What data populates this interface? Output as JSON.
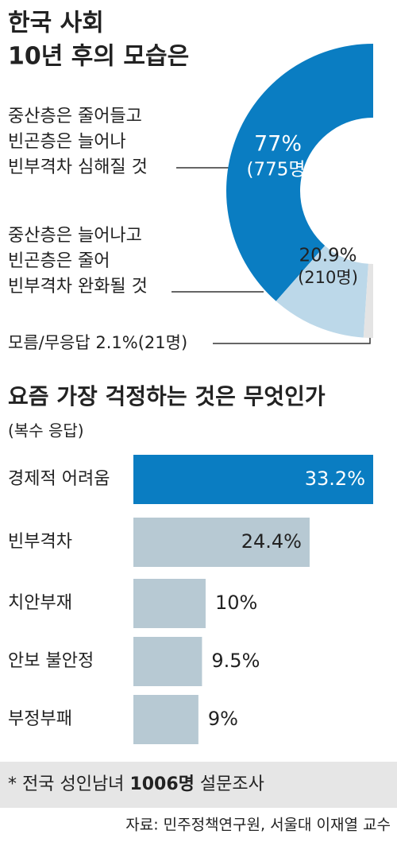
{
  "chart_data": [
    {
      "type": "pie",
      "title": [
        "한국 사회",
        "10년 후의 모습은"
      ],
      "categories": [
        [
          "중산층은 줄어들고",
          "빈곤층은 늘어나",
          "빈부격차 심해질 것"
        ],
        [
          "중산층은 늘어나고",
          "빈곤층은 줄어",
          "빈부격차 완화될 것"
        ],
        [
          "모름/무응답"
        ]
      ],
      "values": [
        77,
        20.9,
        2.1
      ],
      "value_labels": [
        "77%",
        "20.9%",
        "2.1%"
      ],
      "counts": [
        775,
        210,
        21
      ],
      "count_labels": [
        "(775명)",
        "(210명)",
        "(21명)"
      ],
      "colors": [
        "#0a7dc2",
        "#bcd8e9",
        "#e4e4e4"
      ]
    },
    {
      "type": "hbar",
      "title": "요즘 가장 걱정하는 것은 무엇인가",
      "subtitle": "(복수 응답)",
      "categories": [
        "경제적 어려움",
        "빈부격차",
        "치안부재",
        "안보 불안정",
        "부정부패"
      ],
      "values": [
        33.2,
        24.4,
        10,
        9.5,
        9
      ],
      "value_labels": [
        "33.2%",
        "24.4%",
        "10%",
        "9.5%",
        "9%"
      ],
      "colors": [
        "#0a7dc2",
        "#b7c9d3",
        "#b7c9d3",
        "#b7c9d3",
        "#b7c9d3"
      ]
    }
  ],
  "note": {
    "prefix": "* 전국 성인남녀",
    "emphasis": "1006명",
    "suffix": "설문조사"
  },
  "source": "자료: 민주정책연구원, 서울대 이재열 교수"
}
